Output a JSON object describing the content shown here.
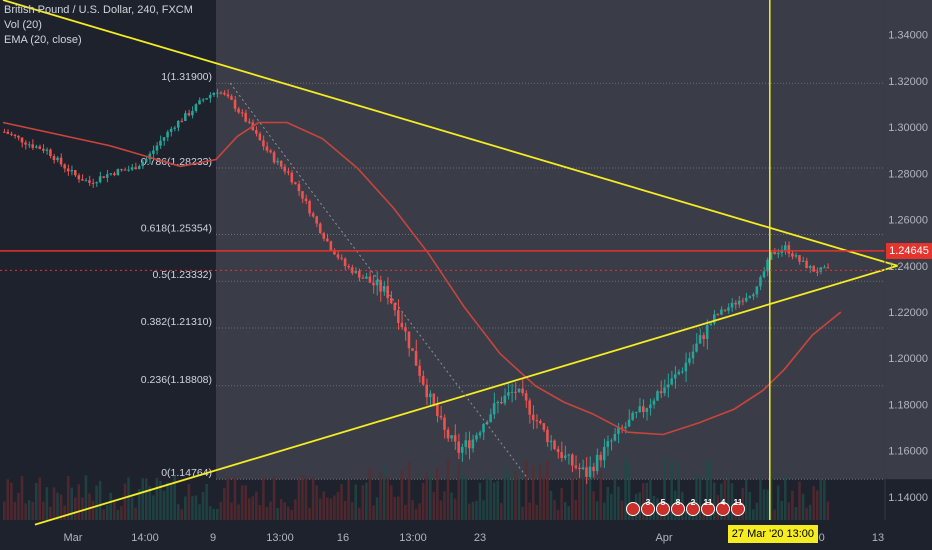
{
  "legend": {
    "symbol": "British Pound / U.S. Dollar, 240, FXCM",
    "vol": "Vol (20)",
    "ema": "EMA (20, close)"
  },
  "current_price": "1.24645",
  "cursor_date": "27 Mar '20",
  "cursor_time": "13:00",
  "colors": {
    "background": "#1e222d",
    "highlight": "#3a3d48",
    "up": "#26a69a",
    "down": "#ef5350",
    "ema": "#c9443b",
    "drawing": "#f5ec22",
    "price_line": "#e5332e"
  },
  "event_markers": [
    "3",
    "5",
    "8",
    "2",
    "11",
    "4",
    "11"
  ],
  "chart_data": {
    "type": "candlestick",
    "symbol": "GBPUSD",
    "timeframe": "240",
    "ylim": [
      1.13,
      1.355
    ],
    "y_ticks": [
      "1.34000",
      "1.32000",
      "1.30000",
      "1.28000",
      "1.26000",
      "1.24000",
      "1.22000",
      "1.20000",
      "1.18000",
      "1.16000",
      "1.14000"
    ],
    "x_ticks": [
      "Mar",
      "14:00",
      "9",
      "13:00",
      "16",
      "13:00",
      "23",
      "27 Mar '20",
      "13:00",
      "Apr",
      "6",
      "14:00",
      "13"
    ],
    "fibonacci": [
      {
        "label": "1(1.31900)",
        "price": 1.319
      },
      {
        "label": "0.786(1.28233)",
        "price": 1.28233
      },
      {
        "label": "0.618(1.25354)",
        "price": 1.25354
      },
      {
        "label": "0.5(1.23332)",
        "price": 1.23332
      },
      {
        "label": "0.382(1.21310)",
        "price": 1.2131
      },
      {
        "label": "0.236(1.18808)",
        "price": 1.18808
      },
      {
        "label": "0(1.14764)",
        "price": 1.14764
      }
    ],
    "price_line": 1.24645,
    "trendlines": [
      {
        "name": "upper",
        "from": [
          0,
          1.355
        ],
        "to": [
          252,
          1.24
        ]
      },
      {
        "name": "lower",
        "from": [
          9,
          1.128
        ],
        "to": [
          252,
          1.24
        ]
      }
    ],
    "close_path": [
      [
        0,
        1.298
      ],
      [
        4,
        1.295
      ],
      [
        8,
        1.292
      ],
      [
        12,
        1.29
      ],
      [
        16,
        1.284
      ],
      [
        20,
        1.279
      ],
      [
        24,
        1.276
      ],
      [
        28,
        1.279
      ],
      [
        32,
        1.281
      ],
      [
        36,
        1.282
      ],
      [
        40,
        1.286
      ],
      [
        44,
        1.294
      ],
      [
        48,
        1.301
      ],
      [
        52,
        1.306
      ],
      [
        56,
        1.312
      ],
      [
        60,
        1.316
      ],
      [
        64,
        1.311
      ],
      [
        68,
        1.303
      ],
      [
        72,
        1.294
      ],
      [
        76,
        1.286
      ],
      [
        80,
        1.28
      ],
      [
        84,
        1.27
      ],
      [
        88,
        1.258
      ],
      [
        92,
        1.248
      ],
      [
        96,
        1.24
      ],
      [
        100,
        1.236
      ],
      [
        104,
        1.232
      ],
      [
        108,
        1.228
      ],
      [
        112,
        1.215
      ],
      [
        116,
        1.198
      ],
      [
        120,
        1.182
      ],
      [
        124,
        1.168
      ],
      [
        128,
        1.16
      ],
      [
        132,
        1.165
      ],
      [
        136,
        1.175
      ],
      [
        140,
        1.182
      ],
      [
        144,
        1.186
      ],
      [
        148,
        1.178
      ],
      [
        152,
        1.168
      ],
      [
        156,
        1.16
      ],
      [
        160,
        1.154
      ],
      [
        164,
        1.15
      ],
      [
        168,
        1.158
      ],
      [
        172,
        1.166
      ],
      [
        176,
        1.172
      ],
      [
        180,
        1.178
      ],
      [
        184,
        1.185
      ],
      [
        188,
        1.19
      ],
      [
        192,
        1.198
      ],
      [
        196,
        1.208
      ],
      [
        200,
        1.218
      ],
      [
        204,
        1.222
      ],
      [
        208,
        1.226
      ],
      [
        212,
        1.23
      ],
      [
        216,
        1.245
      ],
      [
        220,
        1.248
      ],
      [
        224,
        1.242
      ],
      [
        228,
        1.238
      ],
      [
        232,
        1.238
      ]
    ],
    "ema_path": [
      [
        0,
        1.302
      ],
      [
        30,
        1.292
      ],
      [
        50,
        1.283
      ],
      [
        60,
        1.286
      ],
      [
        66,
        1.296
      ],
      [
        72,
        1.302
      ],
      [
        80,
        1.302
      ],
      [
        90,
        1.295
      ],
      [
        100,
        1.282
      ],
      [
        110,
        1.265
      ],
      [
        120,
        1.245
      ],
      [
        130,
        1.222
      ],
      [
        140,
        1.202
      ],
      [
        150,
        1.188
      ],
      [
        158,
        1.181
      ],
      [
        166,
        1.176
      ],
      [
        176,
        1.168
      ],
      [
        186,
        1.167
      ],
      [
        196,
        1.172
      ],
      [
        206,
        1.178
      ],
      [
        214,
        1.186
      ],
      [
        220,
        1.195
      ],
      [
        228,
        1.21
      ],
      [
        236,
        1.22
      ]
    ],
    "cursor_bar": 216,
    "highlight_range": [
      60,
      262
    ]
  }
}
